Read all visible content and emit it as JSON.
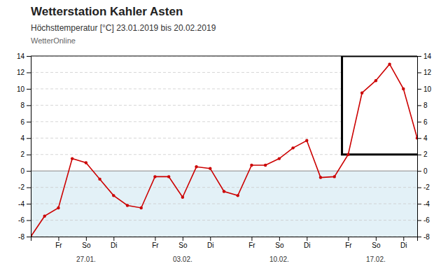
{
  "chart_data": {
    "type": "line",
    "title": "Wetterstation Kahler Asten",
    "subtitle": "Höchsttemperatur [°C] 23.01.2019 bis 20.02.2019",
    "source": "WetterOnline",
    "x": [
      0,
      1,
      2,
      3,
      4,
      5,
      6,
      7,
      8,
      9,
      10,
      11,
      12,
      13,
      14,
      15,
      16,
      17,
      18,
      19,
      20,
      21,
      22,
      23,
      24,
      25,
      26,
      27,
      28
    ],
    "series": [
      {
        "color": "#cc0000",
        "marker": "circle",
        "values": [
          -8.0,
          -5.5,
          -4.5,
          1.5,
          1.0,
          -1.0,
          -3.0,
          -4.2,
          -4.5,
          -0.7,
          -0.7,
          -3.2,
          0.5,
          0.3,
          -2.5,
          -3.0,
          0.7,
          0.7,
          1.5,
          2.8,
          3.7,
          -0.8,
          -0.7,
          2.0,
          9.5,
          11.0,
          13.0,
          10.0,
          4.0
        ]
      }
    ],
    "xlim": [
      0,
      28
    ],
    "xticks": [
      {
        "value": 2,
        "label": "Fr"
      },
      {
        "value": 4,
        "label": "So"
      },
      {
        "value": 6,
        "label": "Di"
      },
      {
        "value": 9,
        "label": "Fr"
      },
      {
        "value": 11,
        "label": "So"
      },
      {
        "value": 13,
        "label": "Di"
      },
      {
        "value": 16,
        "label": "Fr"
      },
      {
        "value": 18,
        "label": "So"
      },
      {
        "value": 20,
        "label": "Di"
      },
      {
        "value": 23,
        "label": "Fr"
      },
      {
        "value": 25,
        "label": "So"
      },
      {
        "value": 27,
        "label": "Di"
      }
    ],
    "annotations": [
      {
        "x": 4,
        "text": "27.01."
      },
      {
        "x": 11,
        "text": "03.02."
      },
      {
        "x": 18,
        "text": "10.02."
      },
      {
        "x": 25,
        "text": "17.02."
      }
    ],
    "ylim": [
      -8,
      14
    ],
    "yticks": [
      -8,
      -6,
      -4,
      -2,
      0,
      2,
      4,
      6,
      8,
      10,
      12,
      14
    ],
    "y2lim": [
      -8,
      14
    ],
    "y2ticks": [
      -8,
      -6,
      -4,
      -2,
      0,
      2,
      4,
      6,
      8,
      10,
      12,
      14
    ],
    "highlight": {
      "x0": 22.55,
      "y0": 2.0,
      "width": 5.7,
      "height": 12.0
    },
    "grid": true
  }
}
